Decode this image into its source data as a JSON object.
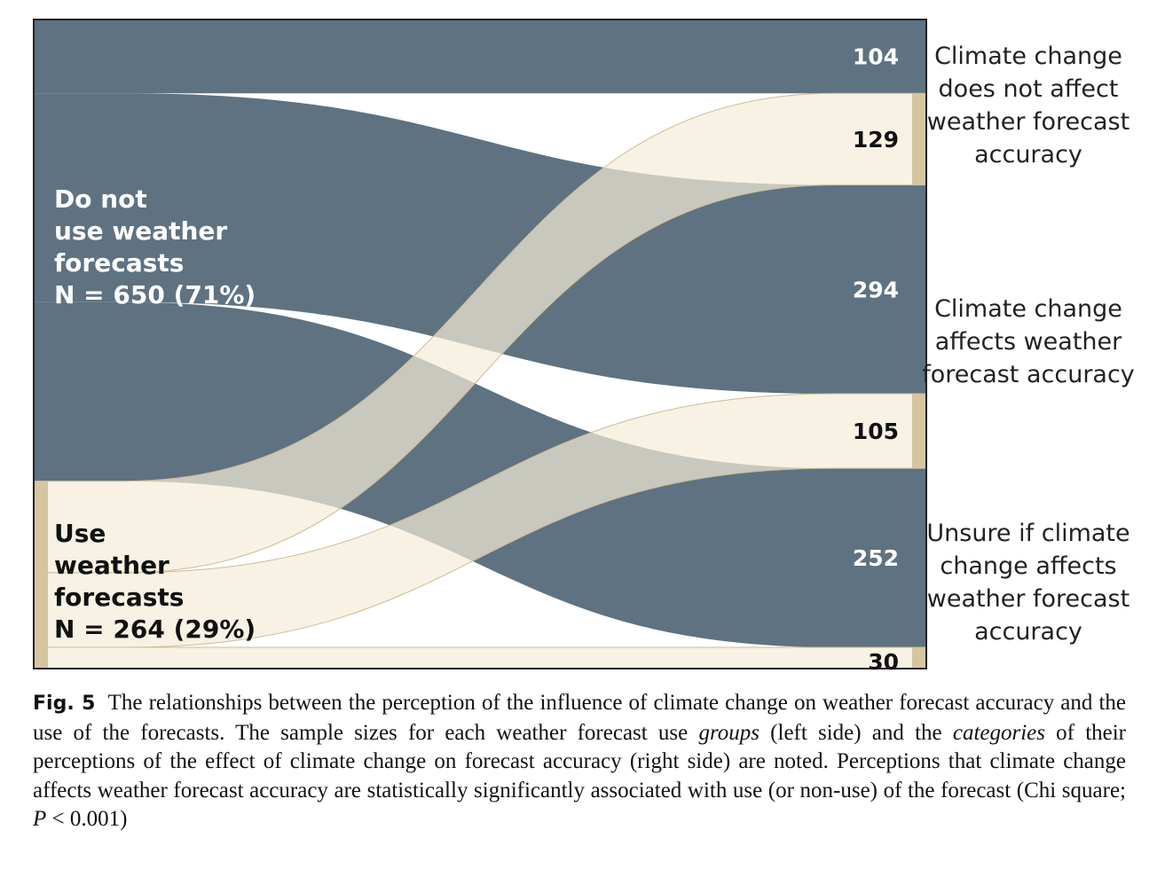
{
  "colors": {
    "non_use": "#5e7281",
    "use": "#f5ecd9",
    "use_edge": "#d6c6a0",
    "use_stroke": "#ccbb94",
    "frame": "#222222"
  },
  "groups": [
    {
      "id": "nonuse",
      "label_lines": [
        "Do not",
        "use weather",
        "forecasts",
        "N = 650 (71%)"
      ]
    },
    {
      "id": "use",
      "label_lines": [
        "Use",
        "weather",
        "forecasts",
        "N = 264 (29%)"
      ]
    }
  ],
  "categories": [
    {
      "id": "no_effect",
      "label_lines": [
        "Climate change",
        "does not affect",
        "weather forecast",
        "accuracy"
      ]
    },
    {
      "id": "effect",
      "label_lines": [
        "Climate change",
        "affects weather",
        "forecast accuracy"
      ]
    },
    {
      "id": "unsure",
      "label_lines": [
        "Unsure if climate",
        "change affects",
        "weather forecast",
        "accuracy"
      ]
    }
  ],
  "flows": [
    {
      "group": "nonuse",
      "category": "no_effect",
      "value": 104
    },
    {
      "group": "use",
      "category": "no_effect",
      "value": 129
    },
    {
      "group": "nonuse",
      "category": "effect",
      "value": 294
    },
    {
      "group": "use",
      "category": "effect",
      "value": 105
    },
    {
      "group": "nonuse",
      "category": "unsure",
      "value": 252
    },
    {
      "group": "use",
      "category": "unsure",
      "value": 30
    }
  ],
  "caption": {
    "fig_label": "Fig. 5",
    "segments": [
      {
        "text": "The relationships between the perception of the influence of climate change on weather forecast accuracy and the use of the forecasts. The sample sizes for each weather forecast use ",
        "italic": false
      },
      {
        "text": "groups",
        "italic": true
      },
      {
        "text": " (left side) and the ",
        "italic": false
      },
      {
        "text": "categories",
        "italic": true
      },
      {
        "text": " of their perceptions of the effect of climate change on forecast accuracy (right side) are noted. Perceptions that climate change affects weather forecast accuracy are statistically significantly associated with use (or non-use) of the forecast (Chi square; ",
        "italic": false
      },
      {
        "text": "P",
        "italic": true
      },
      {
        "text": " < 0.001)",
        "italic": false
      }
    ]
  }
}
